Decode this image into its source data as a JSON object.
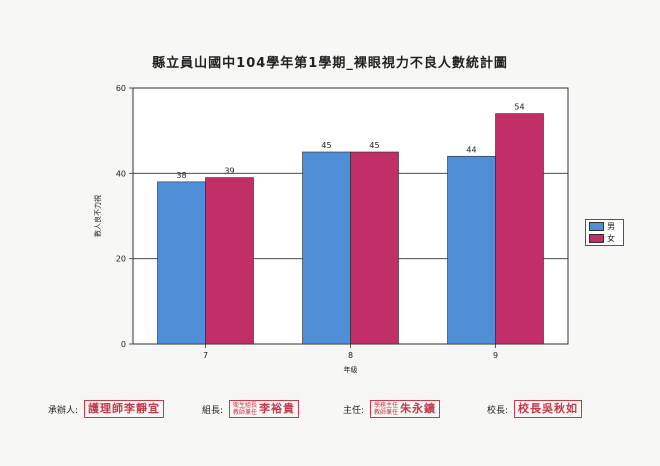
{
  "chart_data": {
    "type": "bar",
    "title": "縣立員山國中104學年第1學期_裸眼視力不良人數統計圖",
    "xlabel": "年級",
    "ylabel": "數人良不力視",
    "categories": [
      "7",
      "8",
      "9"
    ],
    "series": [
      {
        "name": "男",
        "values": [
          38,
          45,
          44
        ],
        "color": "#4f8fd8"
      },
      {
        "name": "女",
        "values": [
          39,
          45,
          54
        ],
        "color": "#c22e68"
      }
    ],
    "ylim": [
      0,
      60
    ],
    "yticks": [
      0,
      20,
      40,
      60
    ],
    "grid": true,
    "legend_position": "right"
  },
  "signatures": [
    {
      "label": "承辦人:",
      "stamp_small": "",
      "stamp_text": "護理師李靜宜"
    },
    {
      "label": "組長:",
      "stamp_small": "衛生組長\n教師兼任",
      "stamp_text": "李裕貴"
    },
    {
      "label": "主任:",
      "stamp_small": "學務主任\n教師兼任",
      "stamp_text": "朱永鑛"
    },
    {
      "label": "校長:",
      "stamp_small": "",
      "stamp_text": "校長吳秋如"
    }
  ]
}
